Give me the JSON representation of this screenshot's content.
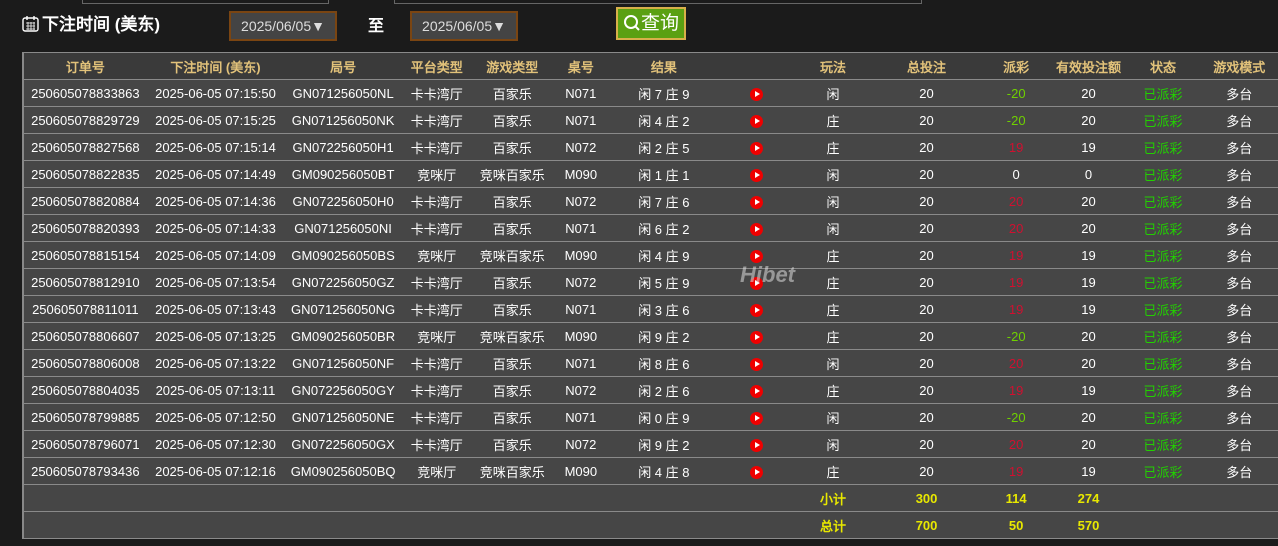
{
  "filter": {
    "label": "下注时间 (美东)",
    "start_date": "2025/06/05",
    "to_label": "至",
    "end_date": "2025/06/05",
    "query_label": "查询"
  },
  "columns": [
    "订单号",
    "下注时间 (美东)",
    "局号",
    "平台类型",
    "游戏类型",
    "桌号",
    "结果",
    "",
    "玩法",
    "总投注",
    "派彩",
    "有效投注额",
    "状态",
    "游戏模式"
  ],
  "rows": [
    [
      "250605078833863",
      "2025-06-05 07:15:50",
      "GN071256050NL",
      "卡卡湾厅",
      "百家乐",
      "N071",
      "闲 7 庄 9",
      "闲",
      "20",
      "-20",
      "20",
      "已派彩",
      "多台"
    ],
    [
      "250605078829729",
      "2025-06-05 07:15:25",
      "GN071256050NK",
      "卡卡湾厅",
      "百家乐",
      "N071",
      "闲 4 庄 2",
      "庄",
      "20",
      "-20",
      "20",
      "已派彩",
      "多台"
    ],
    [
      "250605078827568",
      "2025-06-05 07:15:14",
      "GN072256050H1",
      "卡卡湾厅",
      "百家乐",
      "N072",
      "闲 2 庄 5",
      "庄",
      "20",
      "19",
      "19",
      "已派彩",
      "多台"
    ],
    [
      "250605078822835",
      "2025-06-05 07:14:49",
      "GM090256050BT",
      "竞咪厅",
      "竞咪百家乐",
      "M090",
      "闲 1 庄 1",
      "闲",
      "20",
      "0",
      "0",
      "已派彩",
      "多台"
    ],
    [
      "250605078820884",
      "2025-06-05 07:14:36",
      "GN072256050H0",
      "卡卡湾厅",
      "百家乐",
      "N072",
      "闲 7 庄 6",
      "闲",
      "20",
      "20",
      "20",
      "已派彩",
      "多台"
    ],
    [
      "250605078820393",
      "2025-06-05 07:14:33",
      "GN071256050NI",
      "卡卡湾厅",
      "百家乐",
      "N071",
      "闲 6 庄 2",
      "闲",
      "20",
      "20",
      "20",
      "已派彩",
      "多台"
    ],
    [
      "250605078815154",
      "2025-06-05 07:14:09",
      "GM090256050BS",
      "竞咪厅",
      "竞咪百家乐",
      "M090",
      "闲 4 庄 9",
      "庄",
      "20",
      "19",
      "19",
      "已派彩",
      "多台"
    ],
    [
      "250605078812910",
      "2025-06-05 07:13:54",
      "GN072256050GZ",
      "卡卡湾厅",
      "百家乐",
      "N072",
      "闲 5 庄 9",
      "庄",
      "20",
      "19",
      "19",
      "已派彩",
      "多台"
    ],
    [
      "250605078811011",
      "2025-06-05 07:13:43",
      "GN071256050NG",
      "卡卡湾厅",
      "百家乐",
      "N071",
      "闲 3 庄 6",
      "庄",
      "20",
      "19",
      "19",
      "已派彩",
      "多台"
    ],
    [
      "250605078806607",
      "2025-06-05 07:13:25",
      "GM090256050BR",
      "竞咪厅",
      "竞咪百家乐",
      "M090",
      "闲 9 庄 2",
      "庄",
      "20",
      "-20",
      "20",
      "已派彩",
      "多台"
    ],
    [
      "250605078806008",
      "2025-06-05 07:13:22",
      "GN071256050NF",
      "卡卡湾厅",
      "百家乐",
      "N071",
      "闲 8 庄 6",
      "闲",
      "20",
      "20",
      "20",
      "已派彩",
      "多台"
    ],
    [
      "250605078804035",
      "2025-06-05 07:13:11",
      "GN072256050GY",
      "卡卡湾厅",
      "百家乐",
      "N072",
      "闲 2 庄 6",
      "庄",
      "20",
      "19",
      "19",
      "已派彩",
      "多台"
    ],
    [
      "250605078799885",
      "2025-06-05 07:12:50",
      "GN071256050NE",
      "卡卡湾厅",
      "百家乐",
      "N071",
      "闲 0 庄 9",
      "闲",
      "20",
      "-20",
      "20",
      "已派彩",
      "多台"
    ],
    [
      "250605078796071",
      "2025-06-05 07:12:30",
      "GN072256050GX",
      "卡卡湾厅",
      "百家乐",
      "N072",
      "闲 9 庄 2",
      "闲",
      "20",
      "20",
      "20",
      "已派彩",
      "多台"
    ],
    [
      "250605078793436",
      "2025-06-05 07:12:16",
      "GM090256050BQ",
      "竞咪厅",
      "竞咪百家乐",
      "M090",
      "闲 4 庄 8",
      "庄",
      "20",
      "19",
      "19",
      "已派彩",
      "多台"
    ]
  ],
  "subtotal": {
    "label": "小计",
    "total_bet": "300",
    "payout": "114",
    "valid_bet": "274"
  },
  "total": {
    "label": "总计",
    "total_bet": "700",
    "payout": "50",
    "valid_bet": "570"
  },
  "watermark": "Hibet 海博",
  "colors": {
    "win": "#6fd000",
    "lose": "#d01030",
    "header_text": "#e2c27a",
    "status": "#22d000",
    "summary": "#e8e800",
    "query_bg": "#5aa012"
  }
}
